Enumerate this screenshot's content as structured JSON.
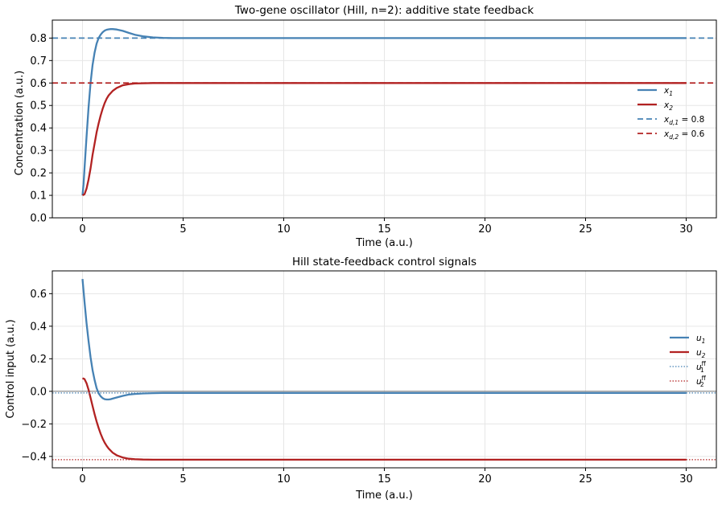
{
  "chart_data": [
    {
      "type": "line",
      "title": "Two-gene oscillator (Hill, n=2): additive state feedback",
      "xlabel": "Time (a.u.)",
      "ylabel": "Concentration (a.u.)",
      "xlim": [
        -1.5,
        31.5
      ],
      "ylim": [
        0.0,
        0.88
      ],
      "xticks": [
        0,
        5,
        10,
        15,
        20,
        25,
        30
      ],
      "yticks": [
        0.0,
        0.1,
        0.2,
        0.3,
        0.4,
        0.5,
        0.6,
        0.7,
        0.8
      ],
      "ytick_labels": [
        "0.0",
        "0.1",
        "0.2",
        "0.3",
        "0.4",
        "0.5",
        "0.6",
        "0.7",
        "0.8"
      ],
      "xtick_labels": [
        "0",
        "5",
        "10",
        "15",
        "20",
        "25",
        "30"
      ],
      "grid": true,
      "legend_position": "center-right",
      "series": [
        {
          "name": "x",
          "sub": "1",
          "color": "#4682b4",
          "style": "solid",
          "x": [
            0,
            0.05,
            0.1,
            0.2,
            0.3,
            0.4,
            0.5,
            0.6,
            0.7,
            0.8,
            0.9,
            1.0,
            1.1,
            1.2,
            1.3,
            1.4,
            1.5,
            1.7,
            2.0,
            2.3,
            2.6,
            3.0,
            3.5,
            4.0,
            4.5,
            5.0,
            6.0,
            8.0,
            10,
            15,
            20,
            25,
            30
          ],
          "y": [
            0.1,
            0.15,
            0.22,
            0.36,
            0.49,
            0.6,
            0.68,
            0.735,
            0.775,
            0.8,
            0.815,
            0.826,
            0.833,
            0.837,
            0.839,
            0.84,
            0.84,
            0.838,
            0.832,
            0.823,
            0.815,
            0.808,
            0.803,
            0.801,
            0.8,
            0.8,
            0.8,
            0.8,
            0.8,
            0.8,
            0.8,
            0.8,
            0.8
          ]
        },
        {
          "name": "x",
          "sub": "2",
          "color": "#b22222",
          "style": "solid",
          "x": [
            0,
            0.1,
            0.2,
            0.3,
            0.4,
            0.5,
            0.6,
            0.7,
            0.8,
            0.9,
            1.0,
            1.1,
            1.2,
            1.3,
            1.5,
            1.7,
            2.0,
            2.3,
            2.6,
            3.0,
            3.5,
            4.0,
            5.0,
            6.0,
            8.0,
            10,
            15,
            20,
            25,
            30
          ],
          "y": [
            0.1,
            0.105,
            0.13,
            0.17,
            0.22,
            0.28,
            0.33,
            0.38,
            0.42,
            0.455,
            0.485,
            0.51,
            0.53,
            0.545,
            0.565,
            0.578,
            0.59,
            0.595,
            0.598,
            0.599,
            0.6,
            0.6,
            0.6,
            0.6,
            0.6,
            0.6,
            0.6,
            0.6,
            0.6,
            0.6
          ]
        },
        {
          "name": "x",
          "sub": "d,1",
          "suffix": " = 0.8",
          "color": "#4682b4",
          "style": "dashed",
          "y_const": 0.8
        },
        {
          "name": "x",
          "sub": "d,2",
          "suffix": " = 0.6",
          "color": "#b22222",
          "style": "dashed",
          "y_const": 0.6
        }
      ]
    },
    {
      "type": "line",
      "title": "Hill state-feedback control signals",
      "xlabel": "Time (a.u.)",
      "ylabel": "Control input (a.u.)",
      "xlim": [
        -1.5,
        31.5
      ],
      "ylim": [
        -0.47,
        0.74
      ],
      "xticks": [
        0,
        5,
        10,
        15,
        20,
        25,
        30
      ],
      "yticks": [
        -0.4,
        -0.2,
        0.0,
        0.2,
        0.4,
        0.6
      ],
      "ytick_labels": [
        "−0.4",
        "−0.2",
        "0.0",
        "0.2",
        "0.4",
        "0.6"
      ],
      "xtick_labels": [
        "0",
        "5",
        "10",
        "15",
        "20",
        "25",
        "30"
      ],
      "grid": true,
      "legend_position": "center-right",
      "zero_line": true,
      "series": [
        {
          "name": "u",
          "sub": "1",
          "color": "#4682b4",
          "style": "solid",
          "x": [
            0,
            0.1,
            0.2,
            0.3,
            0.4,
            0.5,
            0.6,
            0.7,
            0.8,
            0.9,
            1.0,
            1.1,
            1.2,
            1.3,
            1.4,
            1.5,
            1.7,
            2.0,
            2.3,
            2.6,
            3.0,
            3.5,
            4.0,
            5.0,
            6.0,
            8.0,
            10,
            15,
            20,
            25,
            30
          ],
          "y": [
            0.69,
            0.55,
            0.42,
            0.31,
            0.21,
            0.13,
            0.07,
            0.02,
            -0.012,
            -0.03,
            -0.042,
            -0.048,
            -0.05,
            -0.05,
            -0.048,
            -0.045,
            -0.038,
            -0.028,
            -0.02,
            -0.016,
            -0.013,
            -0.011,
            -0.01,
            -0.01,
            -0.01,
            -0.01,
            -0.01,
            -0.01,
            -0.01,
            -0.01,
            -0.01
          ]
        },
        {
          "name": "u",
          "sub": "2",
          "color": "#b22222",
          "style": "solid",
          "x": [
            0,
            0.1,
            0.2,
            0.3,
            0.4,
            0.5,
            0.6,
            0.7,
            0.8,
            0.9,
            1.0,
            1.1,
            1.2,
            1.3,
            1.5,
            1.7,
            2.0,
            2.3,
            2.6,
            3.0,
            3.5,
            4.0,
            5.0,
            6.0,
            8.0,
            10,
            15,
            20,
            25,
            30
          ],
          "y": [
            0.08,
            0.075,
            0.05,
            0.01,
            -0.04,
            -0.09,
            -0.14,
            -0.185,
            -0.225,
            -0.26,
            -0.29,
            -0.315,
            -0.335,
            -0.352,
            -0.377,
            -0.393,
            -0.407,
            -0.414,
            -0.417,
            -0.419,
            -0.42,
            -0.42,
            -0.42,
            -0.42,
            -0.42,
            -0.42,
            -0.42,
            -0.42,
            -0.42,
            -0.42
          ]
        },
        {
          "name": "u",
          "sub": "1",
          "sup": "ff",
          "color": "#4682b4",
          "style": "dotted",
          "y_const": -0.01
        },
        {
          "name": "u",
          "sub": "2",
          "sup": "ff",
          "color": "#b22222",
          "style": "dotted",
          "y_const": -0.42
        }
      ]
    }
  ]
}
